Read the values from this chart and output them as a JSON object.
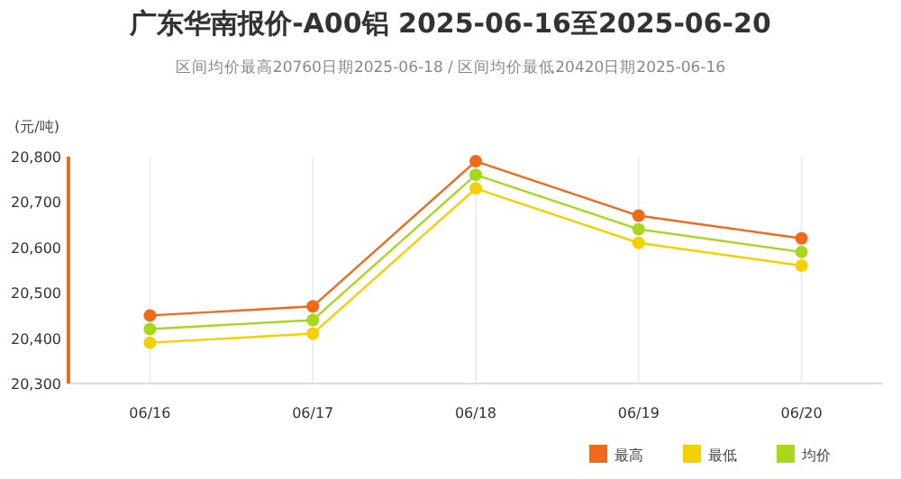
{
  "chart_data": {
    "type": "line",
    "title": "广东华南报价-A00铝 2025-06-16至2025-06-20",
    "subtitle": "区间均价最高20760日期2025-06-18 / 区间均价最低20420日期2025-06-16",
    "ylabel": "(元/吨)",
    "categories": [
      "06/16",
      "06/17",
      "06/18",
      "06/19",
      "06/20"
    ],
    "series": [
      {
        "name": "最高",
        "color": "#f06a1c",
        "values": [
          20450,
          20470,
          20790,
          20670,
          20620
        ]
      },
      {
        "name": "最低",
        "color": "#f5d000",
        "values": [
          20390,
          20410,
          20730,
          20610,
          20560
        ]
      },
      {
        "name": "均价",
        "color": "#a8d81c",
        "values": [
          20420,
          20440,
          20760,
          20640,
          20590
        ]
      }
    ],
    "ylim": [
      20300,
      20800
    ],
    "yticks": [
      {
        "value": 20300,
        "label": "20,300"
      },
      {
        "value": 20400,
        "label": "20,400"
      },
      {
        "value": 20500,
        "label": "20,500"
      },
      {
        "value": 20600,
        "label": "20,600"
      },
      {
        "value": 20700,
        "label": "20,700"
      },
      {
        "value": 20800,
        "label": "20,800"
      }
    ],
    "grid": "x",
    "legend": "bottom right",
    "marker": "circle",
    "line_style": "solid"
  }
}
